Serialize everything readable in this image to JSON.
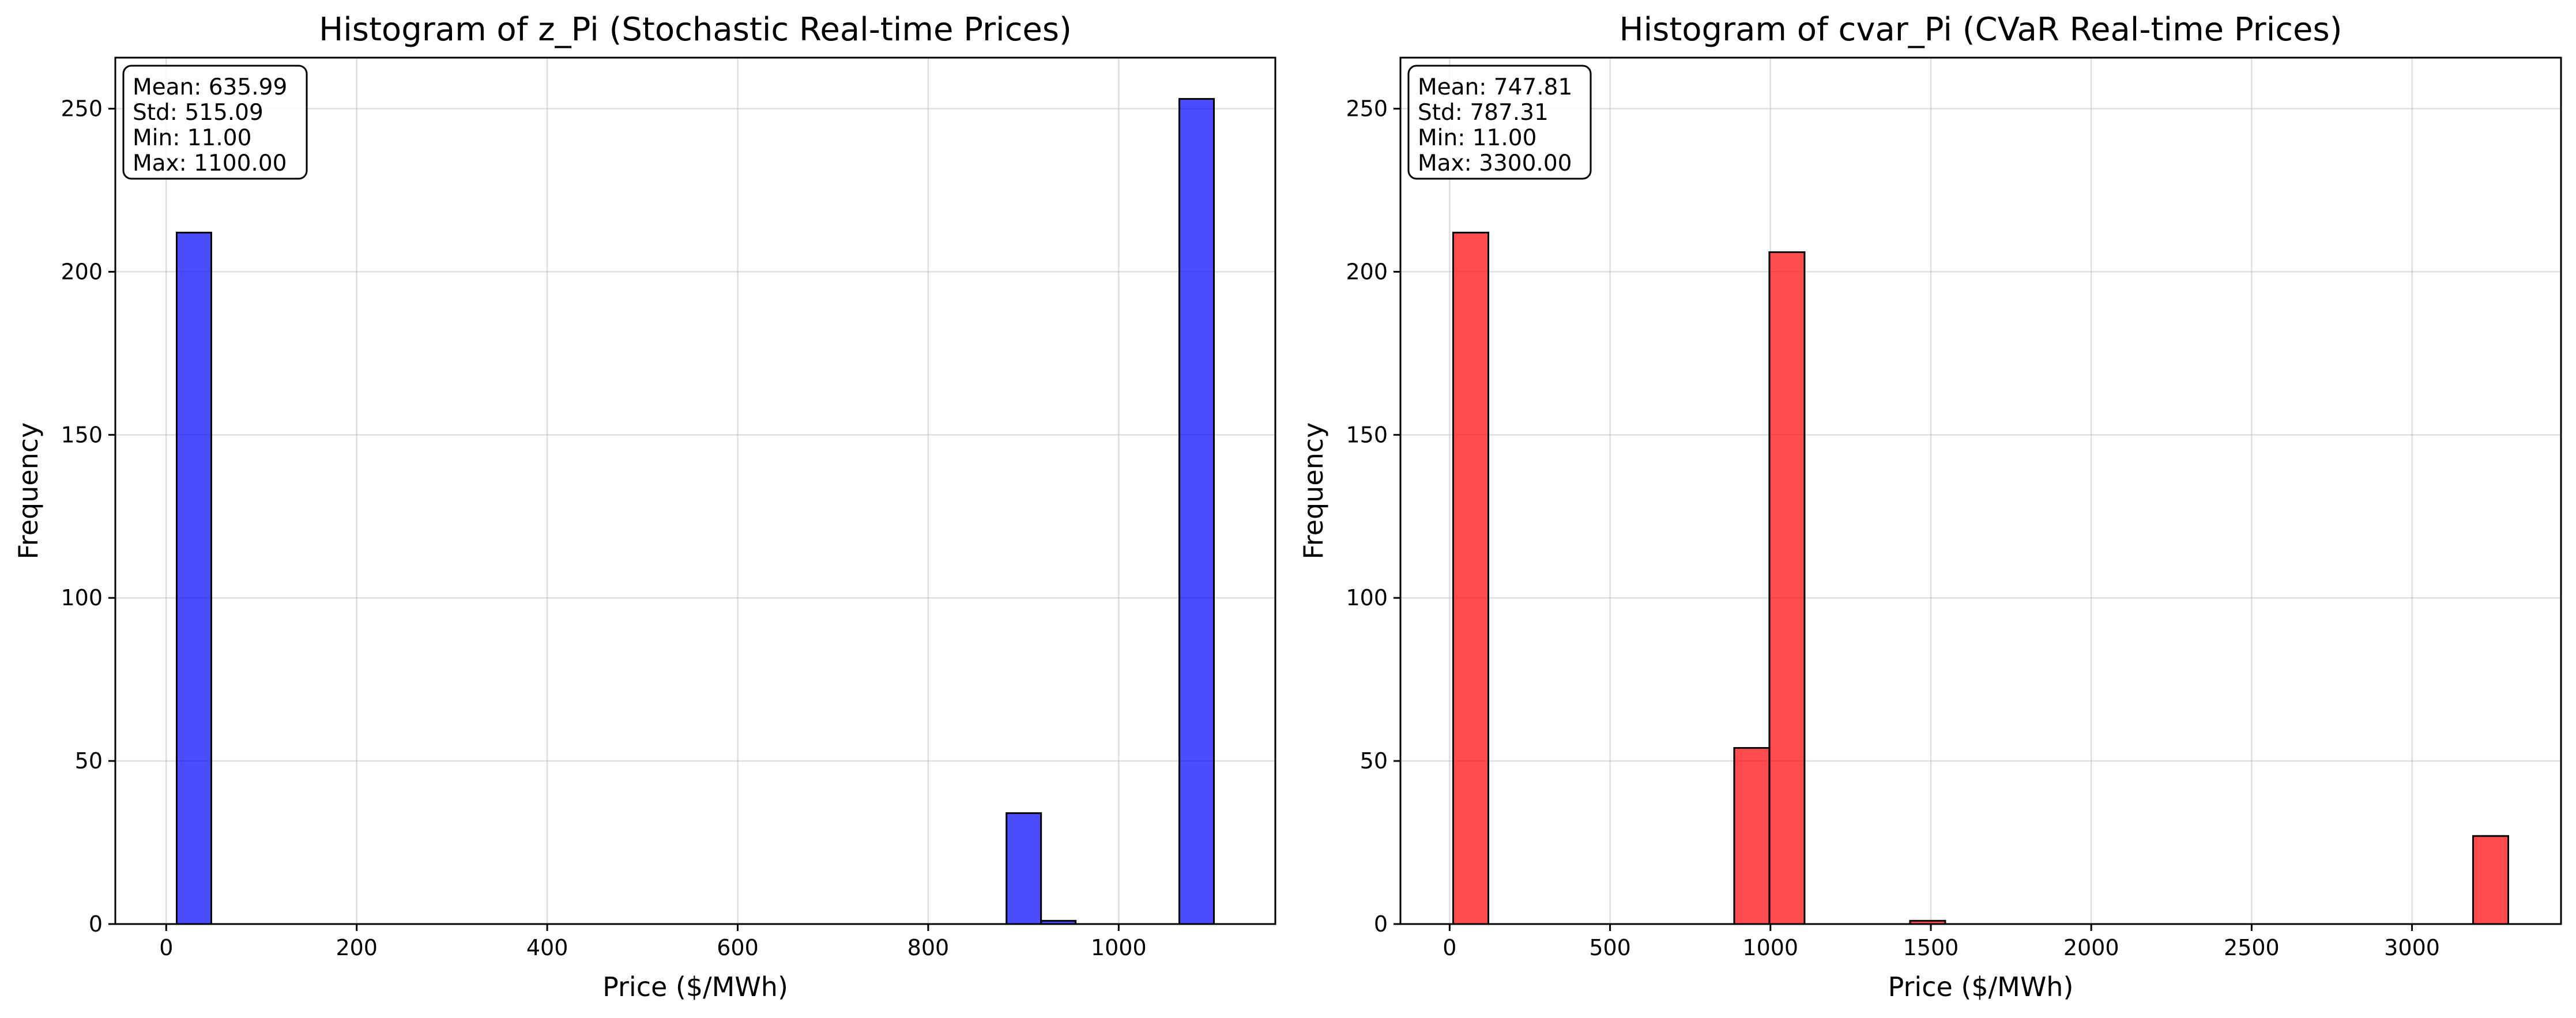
{
  "chart_data": [
    {
      "type": "bar",
      "title": "Histogram of z_Pi (Stochastic Real-time Prices)",
      "xlabel": "Price ($/MWh)",
      "ylabel": "Frequency",
      "xlim": [
        -53.45,
        1164.45
      ],
      "ylim": [
        0,
        265.65
      ],
      "xticks": [
        0,
        200,
        400,
        600,
        800,
        1000
      ],
      "yticks": [
        0,
        50,
        100,
        150,
        200,
        250
      ],
      "grid": true,
      "bin_width": 36.3,
      "color": "#0000ff",
      "edge_color": "#000000",
      "bins": [
        {
          "x0": 11.0,
          "x1": 47.3,
          "count": 212
        },
        {
          "x0": 882.2,
          "x1": 918.5,
          "count": 34
        },
        {
          "x0": 918.5,
          "x1": 954.8,
          "count": 1
        },
        {
          "x0": 1063.7,
          "x1": 1100.0,
          "count": 253
        }
      ],
      "stats": [
        "Mean: 635.99",
        "Std: 515.09",
        "Min: 11.00",
        "Max: 1100.00"
      ]
    },
    {
      "type": "bar",
      "title": "Histogram of cvar_Pi (CVaR Real-time Prices)",
      "xlabel": "Price ($/MWh)",
      "ylabel": "Frequency",
      "xlim": [
        -153.45,
        3464.45
      ],
      "ylim": [
        0,
        265.65
      ],
      "xticks": [
        0,
        500,
        1000,
        1500,
        2000,
        2500,
        3000
      ],
      "yticks": [
        0,
        50,
        100,
        150,
        200,
        250
      ],
      "grid": true,
      "bin_width": 109.63,
      "color": "#ff0000",
      "edge_color": "#000000",
      "bins": [
        {
          "x0": 11.0,
          "x1": 120.63,
          "count": 212
        },
        {
          "x0": 887.1,
          "x1": 996.7,
          "count": 54
        },
        {
          "x0": 996.7,
          "x1": 1106.3,
          "count": 206
        },
        {
          "x0": 1435.2,
          "x1": 1544.8,
          "count": 1
        },
        {
          "x0": 3190.4,
          "x1": 3300.0,
          "count": 27
        }
      ],
      "stats": [
        "Mean: 747.81",
        "Std: 787.31",
        "Min: 11.00",
        "Max: 3300.00"
      ]
    }
  ]
}
